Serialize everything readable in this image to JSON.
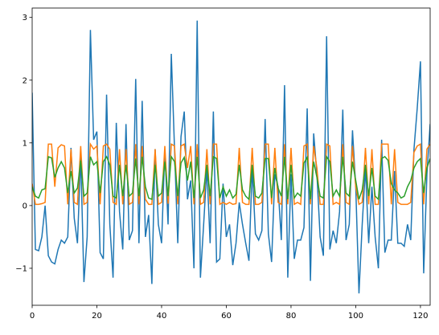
{
  "chart_data": {
    "type": "line",
    "x": [
      0,
      1,
      2,
      3,
      4,
      5,
      6,
      7,
      8,
      9,
      10,
      11,
      12,
      13,
      14,
      15,
      16,
      17,
      18,
      19,
      20,
      21,
      22,
      23,
      24,
      25,
      26,
      27,
      28,
      29,
      30,
      31,
      32,
      33,
      34,
      35,
      36,
      37,
      38,
      39,
      40,
      41,
      42,
      43,
      44,
      45,
      46,
      47,
      48,
      49,
      50,
      51,
      52,
      53,
      54,
      55,
      56,
      57,
      58,
      59,
      60,
      61,
      62,
      63,
      64,
      65,
      66,
      67,
      68,
      69,
      70,
      71,
      72,
      73,
      74,
      75,
      76,
      77,
      78,
      79,
      80,
      81,
      82,
      83,
      84,
      85,
      86,
      87,
      88,
      89,
      90,
      91,
      92,
      93,
      94,
      95,
      96,
      97,
      98,
      99,
      100,
      101,
      102,
      103,
      104,
      105,
      106,
      107,
      108,
      109,
      110,
      111,
      112,
      113,
      114,
      115,
      116,
      117,
      118,
      119,
      120,
      121,
      122,
      123
    ],
    "series": [
      {
        "color": "#1f77b4",
        "values": [
          1.8,
          -0.7,
          -0.72,
          -0.5,
          0.0,
          -0.8,
          -0.9,
          -0.93,
          -0.7,
          -0.55,
          -0.6,
          -0.5,
          0.92,
          -0.2,
          -0.6,
          0.8,
          -1.22,
          -0.5,
          2.8,
          1.05,
          1.18,
          -0.75,
          -0.85,
          1.77,
          -0.3,
          -1.15,
          1.32,
          -0.1,
          -0.7,
          1.3,
          -0.55,
          -0.4,
          2.02,
          -0.6,
          1.67,
          -0.5,
          -0.15,
          -1.25,
          0.9,
          -0.3,
          -0.6,
          0.9,
          -0.3,
          2.42,
          0.9,
          -0.6,
          1.1,
          1.5,
          0.1,
          0.4,
          -1.0,
          2.95,
          -1.15,
          -0.3,
          0.6,
          -0.6,
          1.5,
          -0.9,
          -0.85,
          0.35,
          -0.5,
          -0.3,
          -0.95,
          -0.6,
          0.05,
          -0.3,
          -0.6,
          -0.88,
          0.6,
          -0.45,
          -0.55,
          -0.4,
          1.38,
          -0.45,
          -0.9,
          0.5,
          0.3,
          -0.55,
          1.92,
          -1.15,
          0.5,
          -0.85,
          -0.55,
          -0.55,
          -0.35,
          1.55,
          -1.2,
          1.15,
          0.5,
          -0.5,
          -0.8,
          2.7,
          -0.7,
          -0.4,
          -0.6,
          -0.1,
          1.53,
          -0.55,
          -0.3,
          1.2,
          0.3,
          -1.4,
          -0.3,
          0.6,
          -0.6,
          0.3,
          -0.5,
          -1.0,
          1.05,
          -0.75,
          -0.55,
          -0.55,
          0.55,
          -0.6,
          -0.6,
          -0.65,
          -0.3,
          -0.55,
          0.9,
          1.55,
          2.3,
          -1.08,
          0.5,
          1.3
        ]
      },
      {
        "color": "#ff7f0e",
        "values": [
          0.35,
          0.02,
          0.02,
          0.03,
          0.05,
          0.98,
          0.98,
          0.3,
          0.92,
          0.97,
          0.95,
          0.02,
          0.9,
          0.05,
          0.02,
          0.95,
          0.02,
          0.05,
          0.98,
          0.9,
          0.95,
          0.02,
          0.95,
          0.98,
          0.9,
          0.05,
          0.02,
          0.9,
          0.02,
          0.9,
          0.02,
          0.05,
          0.98,
          0.02,
          0.95,
          0.1,
          0.02,
          0.02,
          0.9,
          0.02,
          0.05,
          0.95,
          0.03,
          0.98,
          0.95,
          0.02,
          0.95,
          0.98,
          0.6,
          0.95,
          0.02,
          0.98,
          0.02,
          0.05,
          0.9,
          0.02,
          0.98,
          0.98,
          0.02,
          0.05,
          0.02,
          0.05,
          0.02,
          0.03,
          0.92,
          0.05,
          0.02,
          0.02,
          0.92,
          0.02,
          0.02,
          0.05,
          0.98,
          0.98,
          0.02,
          0.92,
          0.05,
          0.02,
          0.98,
          0.02,
          0.92,
          0.02,
          0.05,
          0.02,
          0.95,
          0.98,
          0.02,
          0.95,
          0.6,
          0.02,
          0.02,
          0.98,
          0.95,
          0.02,
          0.05,
          0.02,
          0.98,
          0.05,
          0.02,
          0.95,
          0.3,
          0.02,
          0.05,
          0.92,
          0.02,
          0.9,
          0.02,
          0.02,
          0.98,
          0.98,
          0.98,
          0.02,
          0.9,
          0.05,
          0.02,
          0.02,
          0.02,
          0.05,
          0.85,
          0.95,
          0.98,
          0.02,
          0.9,
          0.98
        ]
      },
      {
        "color": "#2ca02c",
        "values": [
          0.3,
          0.15,
          0.12,
          0.25,
          0.27,
          0.78,
          0.76,
          0.45,
          0.6,
          0.7,
          0.6,
          0.2,
          0.55,
          0.2,
          0.28,
          0.72,
          0.15,
          0.2,
          0.78,
          0.65,
          0.7,
          0.2,
          0.7,
          0.78,
          0.65,
          0.15,
          0.12,
          0.65,
          0.15,
          0.65,
          0.15,
          0.2,
          0.75,
          0.15,
          0.78,
          0.3,
          0.12,
          0.1,
          0.65,
          0.15,
          0.2,
          0.7,
          0.15,
          0.78,
          0.7,
          0.15,
          0.68,
          0.77,
          0.4,
          0.7,
          0.12,
          0.78,
          0.12,
          0.25,
          0.65,
          0.15,
          0.78,
          0.75,
          0.12,
          0.3,
          0.15,
          0.25,
          0.12,
          0.18,
          0.65,
          0.25,
          0.15,
          0.1,
          0.65,
          0.15,
          0.12,
          0.2,
          0.75,
          0.75,
          0.12,
          0.6,
          0.28,
          0.15,
          0.78,
          0.1,
          0.65,
          0.12,
          0.2,
          0.15,
          0.68,
          0.77,
          0.1,
          0.7,
          0.45,
          0.15,
          0.12,
          0.78,
          0.7,
          0.15,
          0.25,
          0.15,
          0.78,
          0.2,
          0.15,
          0.7,
          0.4,
          0.1,
          0.25,
          0.65,
          0.15,
          0.6,
          0.15,
          0.1,
          0.75,
          0.78,
          0.72,
          0.35,
          0.25,
          0.2,
          0.12,
          0.15,
          0.3,
          0.4,
          0.6,
          0.7,
          0.75,
          0.2,
          0.6,
          0.75
        ]
      }
    ],
    "xlim": [
      0,
      123
    ],
    "xticks": [
      0,
      20,
      40,
      60,
      80,
      100,
      120
    ],
    "ylim": [
      -1.59,
      3.15
    ],
    "yticks": [
      {
        "value": -1,
        "label": "−1"
      },
      0,
      1,
      2,
      3
    ]
  }
}
